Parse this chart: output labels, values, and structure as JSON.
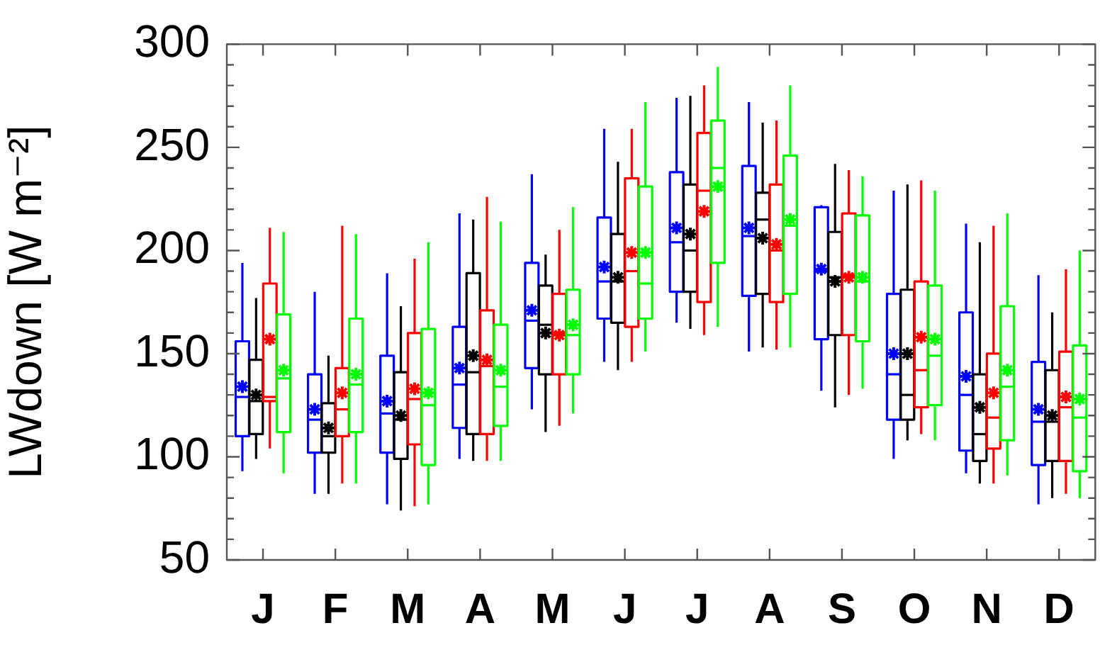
{
  "chart_data": {
    "type": "box",
    "ylabel": "LWdown [W m⁻²]",
    "categories": [
      "J",
      "F",
      "M",
      "A",
      "M",
      "J",
      "J",
      "A",
      "S",
      "O",
      "N",
      "D"
    ],
    "ylim": [
      50,
      300
    ],
    "yticks": [
      50,
      {
        "value": 60,
        "label": null
      },
      {
        "value": 70,
        "label": null
      },
      {
        "value": 80,
        "label": null
      },
      {
        "value": 90,
        "label": null
      },
      100,
      {
        "value": 110,
        "label": null
      },
      {
        "value": 120,
        "label": null
      },
      {
        "value": 130,
        "label": null
      },
      {
        "value": 140,
        "label": null
      },
      150,
      {
        "value": 160,
        "label": null
      },
      {
        "value": 170,
        "label": null
      },
      {
        "value": 180,
        "label": null
      },
      {
        "value": 190,
        "label": null
      },
      200,
      {
        "value": 210,
        "label": null
      },
      {
        "value": 220,
        "label": null
      },
      {
        "value": 230,
        "label": null
      },
      {
        "value": 240,
        "label": null
      },
      250,
      {
        "value": 260,
        "label": null
      },
      {
        "value": 270,
        "label": null
      },
      {
        "value": 280,
        "label": null
      },
      {
        "value": 290,
        "label": null
      },
      300
    ],
    "series": [
      {
        "color": "#0000ff",
        "boxes": [
          {
            "low": 93,
            "q1": 110,
            "median": 129,
            "q3": 156,
            "high": 194,
            "mean": 134
          },
          {
            "low": 82,
            "q1": 102,
            "median": 118,
            "q3": 140,
            "high": 180,
            "mean": 123
          },
          {
            "low": 77,
            "q1": 102,
            "median": 121,
            "q3": 149,
            "high": 189,
            "mean": 127
          },
          {
            "low": 99,
            "q1": 114,
            "median": 135,
            "q3": 163,
            "high": 218,
            "mean": 143
          },
          {
            "low": 123,
            "q1": 143,
            "median": 166,
            "q3": 194,
            "high": 237,
            "mean": 171
          },
          {
            "low": 146,
            "q1": 167,
            "median": 185,
            "q3": 216,
            "high": 259,
            "mean": 192
          },
          {
            "low": 165,
            "q1": 180,
            "median": 204,
            "q3": 238,
            "high": 274,
            "mean": 211
          },
          {
            "low": 151,
            "q1": 178,
            "median": 207,
            "q3": 241,
            "high": 272,
            "mean": 211
          },
          {
            "low": 132,
            "q1": 157,
            "median": 190,
            "q3": 221,
            "high": 222,
            "mean": 191
          },
          {
            "low": 99,
            "q1": 118,
            "median": 140,
            "q3": 179,
            "high": 229,
            "mean": 150
          },
          {
            "low": 92,
            "q1": 103,
            "median": 130,
            "q3": 170,
            "high": 213,
            "mean": 139
          },
          {
            "low": 77,
            "q1": 96,
            "median": 117,
            "q3": 146,
            "high": 188,
            "mean": 123
          }
        ]
      },
      {
        "color": "#000000",
        "boxes": [
          {
            "low": 99,
            "q1": 111,
            "median": 127,
            "q3": 147,
            "high": 177,
            "mean": 130
          },
          {
            "low": 82,
            "q1": 102,
            "median": 110,
            "q3": 126,
            "high": 149,
            "mean": 114
          },
          {
            "low": 74,
            "q1": 99,
            "median": 118,
            "q3": 141,
            "high": 173,
            "mean": 120
          },
          {
            "low": 98,
            "q1": 111,
            "median": 141,
            "q3": 189,
            "high": 215,
            "mean": 149
          },
          {
            "low": 112,
            "q1": 140,
            "median": 164,
            "q3": 183,
            "high": 198,
            "mean": 160
          },
          {
            "low": 142,
            "q1": 165,
            "median": 185,
            "q3": 208,
            "high": 243,
            "mean": 187
          },
          {
            "low": 162,
            "q1": 180,
            "median": 200,
            "q3": 232,
            "high": 275,
            "mean": 208
          },
          {
            "low": 153,
            "q1": 179,
            "median": 215,
            "q3": 228,
            "high": 262,
            "mean": 206
          },
          {
            "low": 124,
            "q1": 159,
            "median": 187,
            "q3": 209,
            "high": 242,
            "mean": 185
          },
          {
            "low": 108,
            "q1": 118,
            "median": 130,
            "q3": 181,
            "high": 232,
            "mean": 150
          },
          {
            "low": 87,
            "q1": 98,
            "median": 111,
            "q3": 140,
            "high": 204,
            "mean": 124
          },
          {
            "low": 80,
            "q1": 98,
            "median": 117,
            "q3": 142,
            "high": 170,
            "mean": 120
          }
        ]
      },
      {
        "color": "#ff0000",
        "boxes": [
          {
            "low": 104,
            "q1": 127,
            "median": 129,
            "q3": 184,
            "high": 211,
            "mean": 157
          },
          {
            "low": 87,
            "q1": 110,
            "median": 123,
            "q3": 143,
            "high": 212,
            "mean": 131
          },
          {
            "low": 76,
            "q1": 106,
            "median": 128,
            "q3": 160,
            "high": 196,
            "mean": 133
          },
          {
            "low": 98,
            "q1": 111,
            "median": 144,
            "q3": 171,
            "high": 226,
            "mean": 147
          },
          {
            "low": 115,
            "q1": 140,
            "median": 160,
            "q3": 179,
            "high": 210,
            "mean": 159
          },
          {
            "low": 146,
            "q1": 163,
            "median": 190,
            "q3": 235,
            "high": 259,
            "mean": 199
          },
          {
            "low": 159,
            "q1": 175,
            "median": 229,
            "q3": 257,
            "high": 280,
            "mean": 219
          },
          {
            "low": 152,
            "q1": 175,
            "median": 200,
            "q3": 232,
            "high": 263,
            "mean": 203
          },
          {
            "low": 130,
            "q1": 159,
            "median": 188,
            "q3": 218,
            "high": 239,
            "mean": 187
          },
          {
            "low": 111,
            "q1": 124,
            "median": 142,
            "q3": 185,
            "high": 234,
            "mean": 158
          },
          {
            "low": 87,
            "q1": 104,
            "median": 119,
            "q3": 150,
            "high": 212,
            "mean": 131
          },
          {
            "low": 82,
            "q1": 98,
            "median": 124,
            "q3": 151,
            "high": 191,
            "mean": 129
          }
        ]
      },
      {
        "color": "#00ff00",
        "boxes": [
          {
            "low": 92,
            "q1": 112,
            "median": 138,
            "q3": 169,
            "high": 209,
            "mean": 142
          },
          {
            "low": 87,
            "q1": 112,
            "median": 135,
            "q3": 167,
            "high": 208,
            "mean": 140
          },
          {
            "low": 77,
            "q1": 96,
            "median": 125,
            "q3": 162,
            "high": 204,
            "mean": 131
          },
          {
            "low": 98,
            "q1": 115,
            "median": 134,
            "q3": 164,
            "high": 214,
            "mean": 142
          },
          {
            "low": 121,
            "q1": 140,
            "median": 159,
            "q3": 181,
            "high": 221,
            "mean": 164
          },
          {
            "low": 151,
            "q1": 167,
            "median": 184,
            "q3": 231,
            "high": 272,
            "mean": 199
          },
          {
            "low": 163,
            "q1": 194,
            "median": 240,
            "q3": 263,
            "high": 289,
            "mean": 231
          },
          {
            "low": 153,
            "q1": 179,
            "median": 212,
            "q3": 246,
            "high": 280,
            "mean": 215
          },
          {
            "low": 133,
            "q1": 156,
            "median": 185,
            "q3": 217,
            "high": 236,
            "mean": 187
          },
          {
            "low": 108,
            "q1": 125,
            "median": 149,
            "q3": 183,
            "high": 229,
            "mean": 157
          },
          {
            "low": 91,
            "q1": 108,
            "median": 134,
            "q3": 173,
            "high": 218,
            "mean": 142
          },
          {
            "low": 80,
            "q1": 93,
            "median": 119,
            "q3": 154,
            "high": 200,
            "mean": 128
          }
        ]
      }
    ]
  }
}
